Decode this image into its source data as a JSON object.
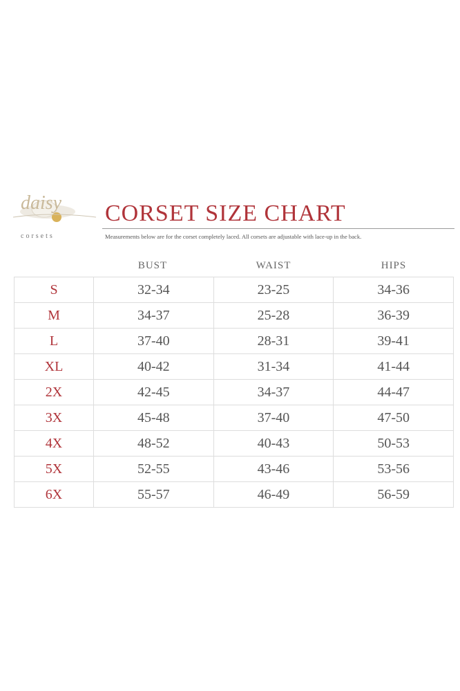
{
  "logo": {
    "name": "daisy",
    "tagline": "corsets"
  },
  "header": {
    "title": "CORSET SIZE CHART",
    "subtitle": "Measurements below are for the corset completely laced.  All corsets are adjustable with lace-up in the back."
  },
  "table": {
    "columns": [
      "BUST",
      "WAIST",
      "HIPS"
    ],
    "rows": [
      [
        "S",
        "32-34",
        "23-25",
        "34-36"
      ],
      [
        "M",
        "34-37",
        "25-28",
        "36-39"
      ],
      [
        "L",
        "37-40",
        "28-31",
        "39-41"
      ],
      [
        "XL",
        "40-42",
        "31-34",
        "41-44"
      ],
      [
        "2X",
        "42-45",
        "34-37",
        "44-47"
      ],
      [
        "3X",
        "45-48",
        "37-40",
        "47-50"
      ],
      [
        "4X",
        "48-52",
        "40-43",
        "50-53"
      ],
      [
        "5X",
        "52-55",
        "43-46",
        "53-56"
      ],
      [
        "6X",
        "55-57",
        "46-49",
        "56-59"
      ]
    ]
  }
}
